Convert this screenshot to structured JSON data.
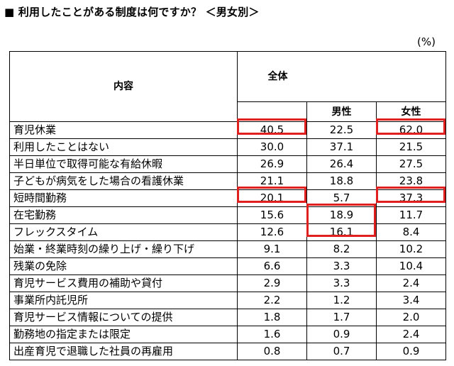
{
  "title": "■ 利用したことがある制度は何ですか？ ＜男女別＞",
  "unit": "(%)",
  "header": {
    "content": "内容",
    "total": "全体",
    "male": "男性",
    "female": "女性"
  },
  "highlight_color": "#e0201f",
  "rows": [
    {
      "label": "育児休業",
      "total": "40.5",
      "male": "22.5",
      "female": "62.0"
    },
    {
      "label": "利用したことはない",
      "total": "30.0",
      "male": "37.1",
      "female": "21.5"
    },
    {
      "label": "半日単位で取得可能な有給休暇",
      "total": "26.9",
      "male": "26.4",
      "female": "27.5"
    },
    {
      "label": "子どもが病気をした場合の看護休業",
      "total": "21.1",
      "male": "18.8",
      "female": "23.8"
    },
    {
      "label": "短時間勤務",
      "total": "20.1",
      "male": "5.7",
      "female": "37.3"
    },
    {
      "label": "在宅勤務",
      "total": "15.6",
      "male": "18.9",
      "female": "11.7"
    },
    {
      "label": "フレックスタイム",
      "total": "12.6",
      "male": "16.1",
      "female": "8.4"
    },
    {
      "label": "始業・終業時刻の繰り上げ・繰り下げ",
      "total": "9.1",
      "male": "8.2",
      "female": "10.2"
    },
    {
      "label": "残業の免除",
      "total": "6.6",
      "male": "3.3",
      "female": "10.4"
    },
    {
      "label": "育児サービス費用の補助や貸付",
      "total": "2.9",
      "male": "3.3",
      "female": "2.4"
    },
    {
      "label": "事業所内託児所",
      "total": "2.2",
      "male": "1.2",
      "female": "3.4"
    },
    {
      "label": "育児サービス情報についての提供",
      "total": "1.8",
      "male": "1.7",
      "female": "2.0"
    },
    {
      "label": "勤務地の指定または限定",
      "total": "1.6",
      "male": "0.9",
      "female": "2.4"
    },
    {
      "label": "出産育児で退職した社員の再雇用",
      "total": "0.8",
      "male": "0.7",
      "female": "0.9"
    }
  ]
}
